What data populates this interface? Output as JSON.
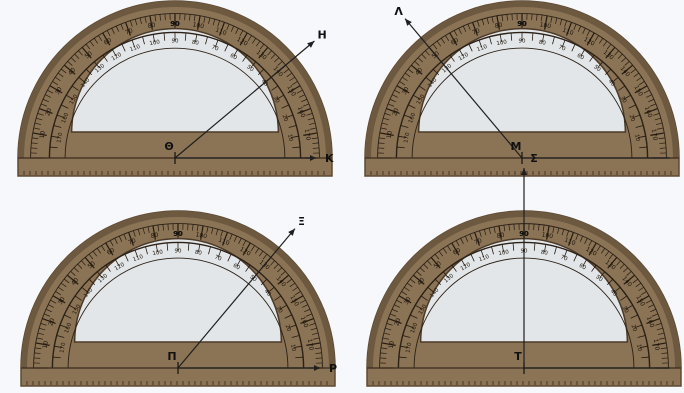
{
  "protractor": {
    "scale_labels": {
      "outer": [
        "10",
        "20",
        "30",
        "40",
        "50",
        "60",
        "70",
        "80",
        "90",
        "100",
        "110",
        "120",
        "130",
        "140",
        "150",
        "160",
        "170"
      ],
      "inner": [
        "170",
        "160",
        "150",
        "140",
        "130",
        "120",
        "110",
        "100",
        "90",
        "80",
        "70",
        "60",
        "50",
        "40",
        "30",
        "20",
        "10"
      ]
    },
    "top_label": "90"
  },
  "panels": [
    {
      "center_label": "Θ",
      "ray_label": "Κ",
      "arm_label": "Η",
      "arm_angle_deg": 40
    },
    {
      "center_label": "Μ",
      "ray_label": "",
      "arm_label": "Λ",
      "arm_angle_deg": 130
    },
    {
      "center_label": "Π",
      "ray_label": "Ρ",
      "arm_label": "Ξ",
      "arm_angle_deg": 50
    },
    {
      "center_label": "Τ",
      "ray_label": "",
      "arm_label": "Σ",
      "arm_angle_deg": 90
    }
  ],
  "colors": {
    "plastic": "#8b7355",
    "plastic_dark": "#5e4a33",
    "window": "#e3e6e8",
    "line": "#1f1f1f",
    "paper": "#f6f8fb"
  }
}
